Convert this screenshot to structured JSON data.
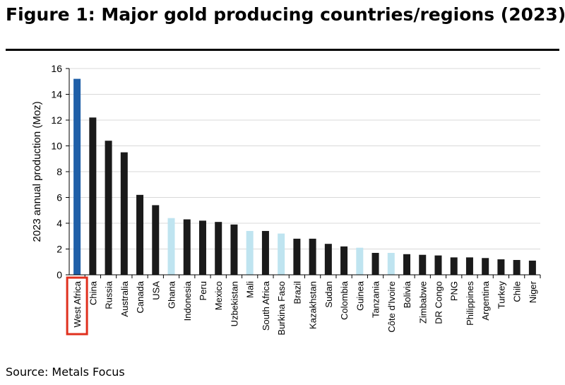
{
  "title": "Figure 1: Major gold producing countries/regions (2023)",
  "source": "Source: Metals Focus",
  "colors": {
    "primary": "#1f5fa8",
    "highlight": "#bfe4f0",
    "default": "#1a1a1a",
    "callout": "#e0301e"
  },
  "chart_data": {
    "type": "bar",
    "ylabel": "2023 annual production (Moz)",
    "xlabel": "",
    "ylim": [
      0,
      16
    ],
    "yticks": [
      0,
      2,
      4,
      6,
      8,
      10,
      12,
      14,
      16
    ],
    "grid": true,
    "categories": [
      "West Africa",
      "China",
      "Russia",
      "Australia",
      "Canada",
      "USA",
      "Ghana",
      "Indonesia",
      "Peru",
      "Mexico",
      "Uzbekistan",
      "Mali",
      "South Africa",
      "Burkina Faso",
      "Brazil",
      "Kazakhstan",
      "Sudan",
      "Colombia",
      "Guinea",
      "Tanzania",
      "Côte d'Ivoire",
      "Bolivia",
      "Zimbabwe",
      "DR Congo",
      "PNG",
      "Philippines",
      "Argentina",
      "Turkey",
      "Chile",
      "Niger"
    ],
    "values": [
      15.2,
      12.2,
      10.4,
      9.5,
      6.2,
      5.4,
      4.4,
      4.3,
      4.2,
      4.1,
      3.9,
      3.4,
      3.4,
      3.2,
      2.8,
      2.8,
      2.4,
      2.2,
      2.1,
      1.7,
      1.7,
      1.6,
      1.55,
      1.5,
      1.35,
      1.35,
      1.3,
      1.2,
      1.15,
      1.1
    ],
    "bar_styles": [
      "primary",
      "default",
      "default",
      "default",
      "default",
      "default",
      "highlight",
      "default",
      "default",
      "default",
      "default",
      "highlight",
      "default",
      "highlight",
      "default",
      "default",
      "default",
      "default",
      "highlight",
      "default",
      "highlight",
      "default",
      "default",
      "default",
      "default",
      "default",
      "default",
      "default",
      "default",
      "default"
    ],
    "boxed_category": "West Africa"
  }
}
